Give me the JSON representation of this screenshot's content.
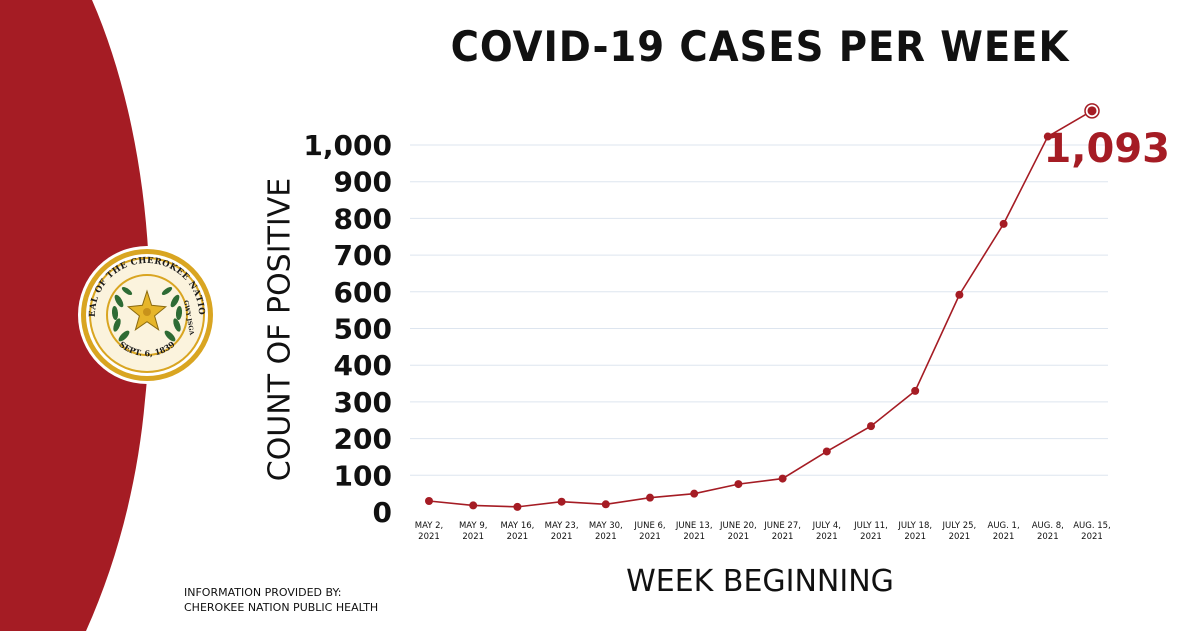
{
  "colors": {
    "accent": "#a51c24",
    "gridline": "#dde5ef",
    "text": "#111111",
    "seal_gold": "#d9a521",
    "seal_green": "#2e6b34"
  },
  "seal": {
    "text_top": "SEAL OF THE CHEROKEE NATION",
    "text_bottom": "SEPT. 6, 1839",
    "text_right": "GWY JSGA"
  },
  "credit": {
    "line1": "INFORMATION PROVIDED BY:",
    "line2": "CHEROKEE NATION PUBLIC HEALTH"
  },
  "chart_data": {
    "type": "line",
    "title": "COVID-19 CASES PER WEEK",
    "xlabel": "WEEK BEGINNING",
    "ylabel": "COUNT OF POSITIVE",
    "ylim": [
      0,
      1000
    ],
    "yticks": [
      {
        "value": 0,
        "label": "0"
      },
      {
        "value": 100,
        "label": "100"
      },
      {
        "value": 200,
        "label": "200"
      },
      {
        "value": 300,
        "label": "300"
      },
      {
        "value": 400,
        "label": "400"
      },
      {
        "value": 500,
        "label": "500"
      },
      {
        "value": 600,
        "label": "600"
      },
      {
        "value": 700,
        "label": "700"
      },
      {
        "value": 800,
        "label": "800"
      },
      {
        "value": 900,
        "label": "900"
      },
      {
        "value": 1000,
        "label": "1,000"
      }
    ],
    "grid": true,
    "legend": "none",
    "categories": [
      [
        "MAY 2,",
        "2021"
      ],
      [
        "MAY 9,",
        "2021"
      ],
      [
        "MAY 16,",
        "2021"
      ],
      [
        "MAY 23,",
        "2021"
      ],
      [
        "MAY 30,",
        "2021"
      ],
      [
        "JUNE 6,",
        "2021"
      ],
      [
        "JUNE 13,",
        "2021"
      ],
      [
        "JUNE 20,",
        "2021"
      ],
      [
        "JUNE 27,",
        "2021"
      ],
      [
        "JULY 4,",
        "2021"
      ],
      [
        "JULY 11,",
        "2021"
      ],
      [
        "JULY 18,",
        "2021"
      ],
      [
        "JULY 25,",
        "2021"
      ],
      [
        "AUG. 1,",
        "2021"
      ],
      [
        "AUG. 8,",
        "2021"
      ],
      [
        "AUG. 15,",
        "2021"
      ]
    ],
    "series": [
      {
        "values": [
          30,
          18,
          14,
          28,
          21,
          39,
          50,
          76,
          91,
          165,
          234,
          330,
          592,
          785,
          1023,
          1093
        ]
      }
    ],
    "annotation": {
      "label": "1,093",
      "point_index": 15
    }
  }
}
